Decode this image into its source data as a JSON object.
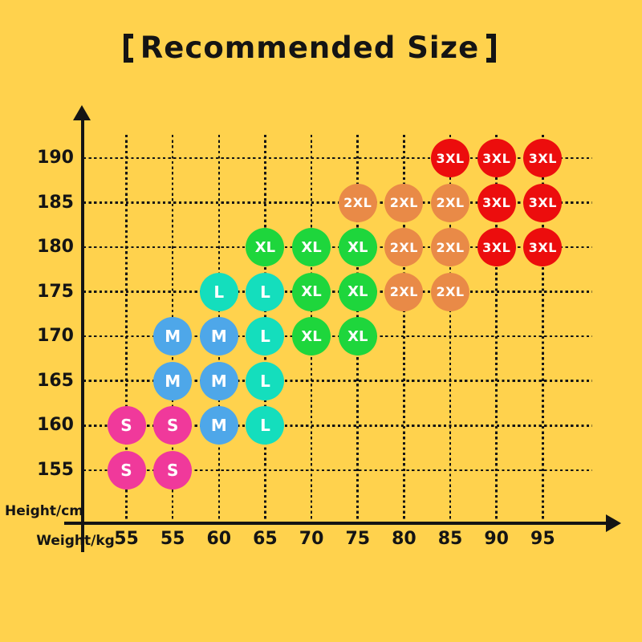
{
  "title": {
    "full": "【Recommended Size】",
    "text": "Recommended Size",
    "left_bracket": "【",
    "right_bracket": "】"
  },
  "colors": {
    "background": "#FFD24D",
    "axis_and_text": "#141414",
    "bubble_text": "#FFFFFF"
  },
  "chart_data": {
    "type": "scatter",
    "title": "【Recommended Size】",
    "xlabel": "Weight/kg",
    "ylabel": "Height/cm",
    "x_ticks": [
      "55",
      "55",
      "60",
      "65",
      "70",
      "75",
      "80",
      "85",
      "90",
      "95"
    ],
    "y_ticks": [
      "190",
      "185",
      "180",
      "175",
      "170",
      "165",
      "160",
      "155"
    ],
    "grid": true,
    "size_colors": {
      "S": "#F0399B",
      "M": "#4EA7E9",
      "L": "#14DEBD",
      "XL": "#1ED63C",
      "2XL": "#E98A47",
      "3XL": "#EC0D0D"
    },
    "rows": [
      {
        "height": "190",
        "bubbles": [
          {
            "col": 7,
            "weight": "85",
            "size": "3XL"
          },
          {
            "col": 8,
            "weight": "90",
            "size": "3XL"
          },
          {
            "col": 9,
            "weight": "95",
            "size": "3XL"
          }
        ]
      },
      {
        "height": "185",
        "bubbles": [
          {
            "col": 5,
            "weight": "75",
            "size": "2XL"
          },
          {
            "col": 6,
            "weight": "80",
            "size": "2XL"
          },
          {
            "col": 7,
            "weight": "85",
            "size": "2XL"
          },
          {
            "col": 8,
            "weight": "90",
            "size": "3XL"
          },
          {
            "col": 9,
            "weight": "95",
            "size": "3XL"
          }
        ]
      },
      {
        "height": "180",
        "bubbles": [
          {
            "col": 3,
            "weight": "65",
            "size": "XL"
          },
          {
            "col": 4,
            "weight": "70",
            "size": "XL"
          },
          {
            "col": 5,
            "weight": "75",
            "size": "XL"
          },
          {
            "col": 6,
            "weight": "80",
            "size": "2XL"
          },
          {
            "col": 7,
            "weight": "85",
            "size": "2XL"
          },
          {
            "col": 8,
            "weight": "90",
            "size": "3XL"
          },
          {
            "col": 9,
            "weight": "95",
            "size": "3XL"
          }
        ]
      },
      {
        "height": "175",
        "bubbles": [
          {
            "col": 2,
            "weight": "60",
            "size": "L"
          },
          {
            "col": 3,
            "weight": "65",
            "size": "L"
          },
          {
            "col": 4,
            "weight": "70",
            "size": "XL"
          },
          {
            "col": 5,
            "weight": "75",
            "size": "XL"
          },
          {
            "col": 6,
            "weight": "80",
            "size": "2XL"
          },
          {
            "col": 7,
            "weight": "85",
            "size": "2XL"
          }
        ]
      },
      {
        "height": "170",
        "bubbles": [
          {
            "col": 1,
            "weight": "55",
            "size": "M"
          },
          {
            "col": 2,
            "weight": "60",
            "size": "M"
          },
          {
            "col": 3,
            "weight": "65",
            "size": "L"
          },
          {
            "col": 4,
            "weight": "70",
            "size": "XL"
          },
          {
            "col": 5,
            "weight": "75",
            "size": "XL"
          }
        ]
      },
      {
        "height": "165",
        "bubbles": [
          {
            "col": 1,
            "weight": "55",
            "size": "M"
          },
          {
            "col": 2,
            "weight": "60",
            "size": "M"
          },
          {
            "col": 3,
            "weight": "65",
            "size": "L"
          }
        ]
      },
      {
        "height": "160",
        "bubbles": [
          {
            "col": 0,
            "weight": "55",
            "size": "S"
          },
          {
            "col": 1,
            "weight": "55",
            "size": "S"
          },
          {
            "col": 2,
            "weight": "60",
            "size": "M"
          },
          {
            "col": 3,
            "weight": "65",
            "size": "L"
          }
        ]
      },
      {
        "height": "155",
        "bubbles": [
          {
            "col": 0,
            "weight": "55",
            "size": "S"
          },
          {
            "col": 1,
            "weight": "55",
            "size": "S"
          }
        ]
      }
    ]
  }
}
